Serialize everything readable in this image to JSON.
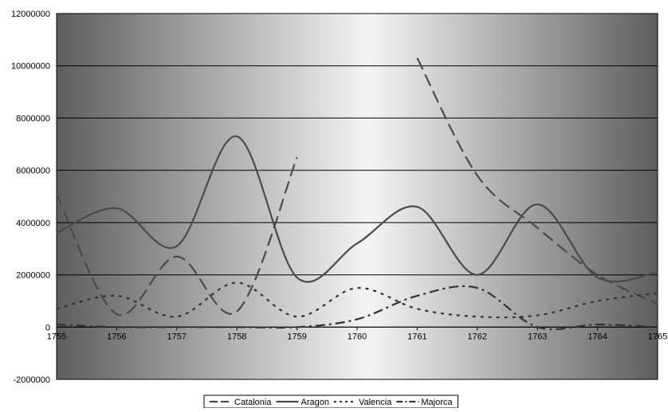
{
  "chart_data": {
    "type": "line",
    "title": "",
    "xlabel": "",
    "ylabel": "",
    "x": [
      1755,
      1756,
      1757,
      1758,
      1759,
      1760,
      1761,
      1762,
      1763,
      1764,
      1765
    ],
    "x_tick_labels": [
      "1755",
      "1756",
      "1757",
      "1758",
      "1759",
      "1760",
      "1761",
      "1762",
      "1763",
      "1764",
      "1765"
    ],
    "ylim": [
      -2000000,
      12000000
    ],
    "y_ticks": [
      -2000000,
      0,
      2000000,
      4000000,
      6000000,
      8000000,
      10000000,
      12000000
    ],
    "y_tick_labels": [
      "-2000000",
      "0",
      "2000000",
      "4000000",
      "6000000",
      "8000000",
      "10000000",
      "12000000"
    ],
    "grid": true,
    "legend_position": "bottom",
    "series": [
      {
        "name": "Catalonia",
        "color": "#4a4a4a",
        "dash": "long-dash",
        "values": [
          5100000,
          500000,
          2700000,
          600000,
          6500000,
          null,
          10300000,
          5800000,
          3800000,
          2000000,
          900000
        ]
      },
      {
        "name": "Aragon",
        "color": "#4a4a4a",
        "dash": "solid",
        "values": [
          3600000,
          4550000,
          3100000,
          7300000,
          1900000,
          3200000,
          4600000,
          2000000,
          4700000,
          1900000,
          2100000
        ]
      },
      {
        "name": "Valencia",
        "color": "#333333",
        "dash": "dot",
        "values": [
          700000,
          1200000,
          400000,
          1700000,
          400000,
          1500000,
          700000,
          400000,
          450000,
          1000000,
          1300000
        ]
      },
      {
        "name": "Majorca",
        "color": "#333333",
        "dash": "dash-dot",
        "values": [
          100000,
          0,
          0,
          0,
          0,
          300000,
          1200000,
          1500000,
          0,
          100000,
          0
        ]
      }
    ]
  }
}
